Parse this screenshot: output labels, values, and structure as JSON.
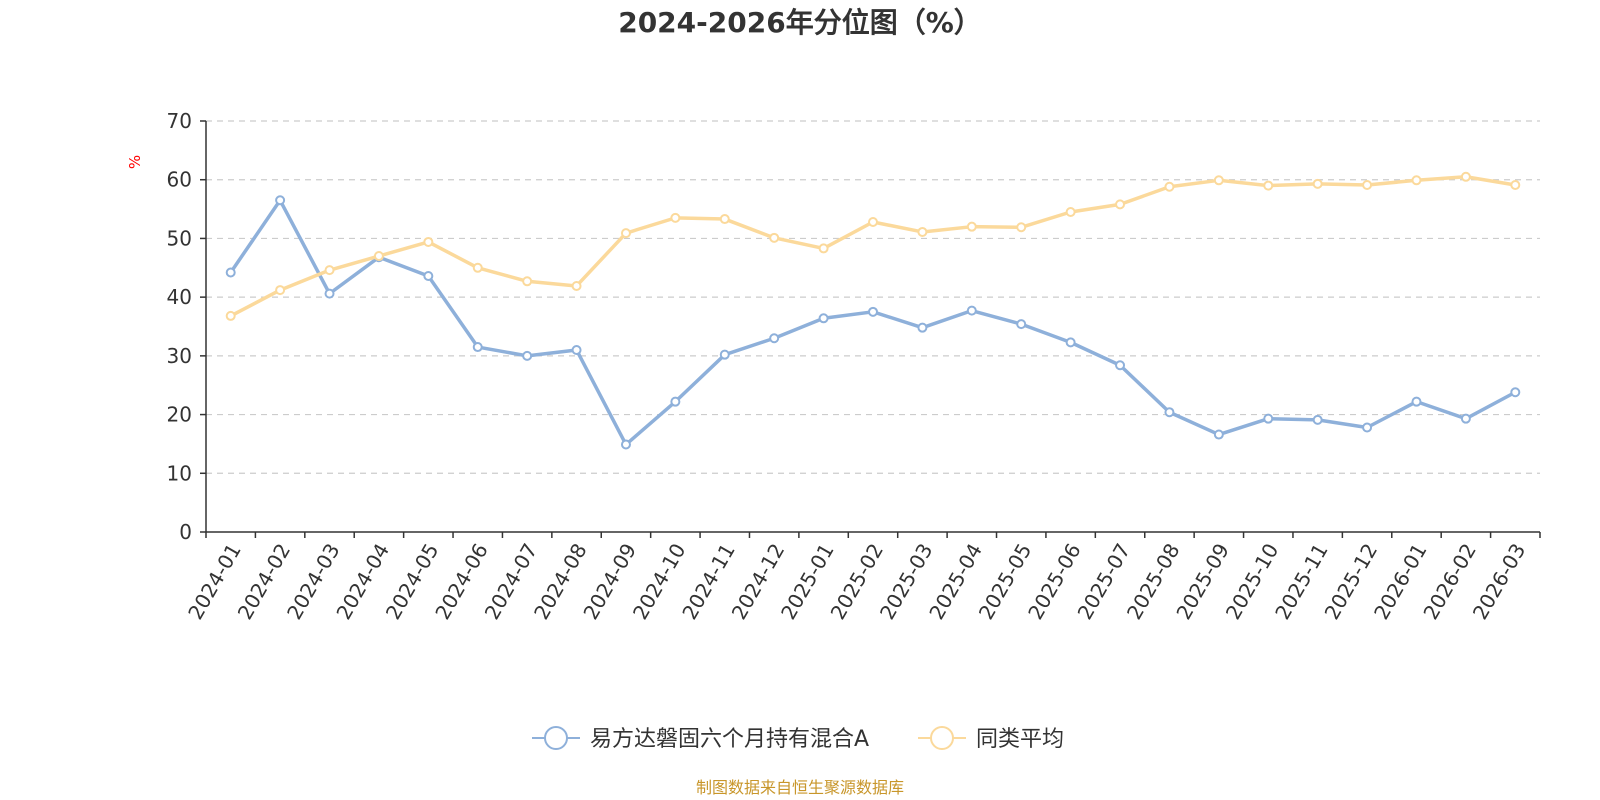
{
  "chart_data": {
    "type": "line",
    "title": "2024-2026年分位图（%）",
    "ylabel": "%",
    "xlabel": "",
    "ylim": [
      0,
      70
    ],
    "yticks": [
      0,
      10,
      20,
      30,
      40,
      50,
      60,
      70
    ],
    "grid": true,
    "legend_position": "bottom",
    "x": [
      "2024-01",
      "2024-02",
      "2024-03",
      "2024-04",
      "2024-05",
      "2024-06",
      "2024-07",
      "2024-08",
      "2024-09",
      "2024-10",
      "2024-11",
      "2024-12",
      "2025-01",
      "2025-02",
      "2025-03",
      "2025-04",
      "2025-05",
      "2025-06",
      "2025-07",
      "2025-08",
      "2025-09",
      "2025-10",
      "2025-11",
      "2025-12",
      "2026-01",
      "2026-02",
      "2026-03"
    ],
    "series": [
      {
        "name": "易方达磐固六个月持有混合A",
        "color": "#8eb0da",
        "values": [
          44.2,
          56.5,
          40.6,
          46.8,
          43.6,
          31.5,
          30.0,
          31.0,
          14.9,
          22.2,
          30.2,
          33.0,
          36.4,
          37.5,
          34.8,
          37.7,
          35.4,
          32.3,
          28.4,
          20.4,
          16.6,
          19.3,
          19.1,
          17.8,
          22.2,
          19.3,
          23.8
        ]
      },
      {
        "name": "同类平均",
        "color": "#fbd99b",
        "values": [
          36.8,
          41.2,
          44.6,
          47.0,
          49.4,
          45.0,
          42.7,
          41.9,
          50.9,
          53.5,
          53.3,
          50.1,
          48.3,
          52.8,
          51.1,
          52.0,
          51.9,
          54.5,
          55.8,
          58.8,
          59.9,
          59.0,
          59.3,
          59.1,
          59.9,
          60.5,
          59.1
        ]
      }
    ],
    "source": "制图数据来自恒生聚源数据库"
  }
}
